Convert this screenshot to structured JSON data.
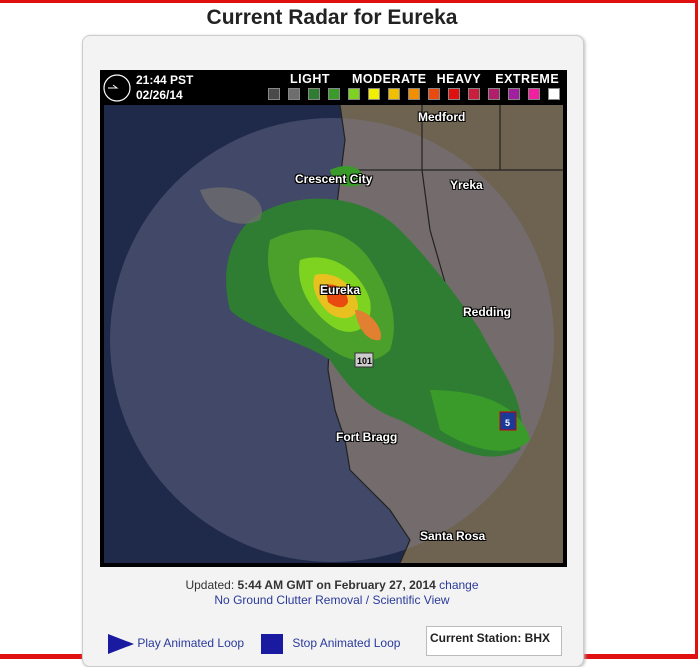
{
  "page_title": "Current Radar for Eureka",
  "radar": {
    "time": "21:44 PST",
    "date": "02/26/14",
    "legend_labels": [
      "LIGHT",
      "MODERATE",
      "HEAVY",
      "EXTREME"
    ],
    "legend_colors": [
      "#4a4a4a",
      "#6e6e6e",
      "#2e7d32",
      "#3a9a2a",
      "#7ed321",
      "#f0f000",
      "#f0c000",
      "#f09000",
      "#e84a10",
      "#e01010",
      "#c8203c",
      "#b0206a",
      "#a020a0",
      "#f020a0",
      "#ffffff"
    ],
    "cities": [
      "Medford",
      "Crescent City",
      "Yreka",
      "Eureka",
      "Redding",
      "Fort Bragg",
      "Santa Rosa"
    ],
    "highway_shields": [
      "101",
      "5"
    ]
  },
  "updated": {
    "prefix": "Updated:",
    "time": "5:44 AM GMT on February 27, 2014",
    "change_link": "change",
    "view_link": "No Ground Clutter Removal / Scientific View"
  },
  "controls": {
    "play": "Play Animated Loop",
    "stop": "Stop Animated Loop",
    "station": "Current Station: BHX"
  }
}
